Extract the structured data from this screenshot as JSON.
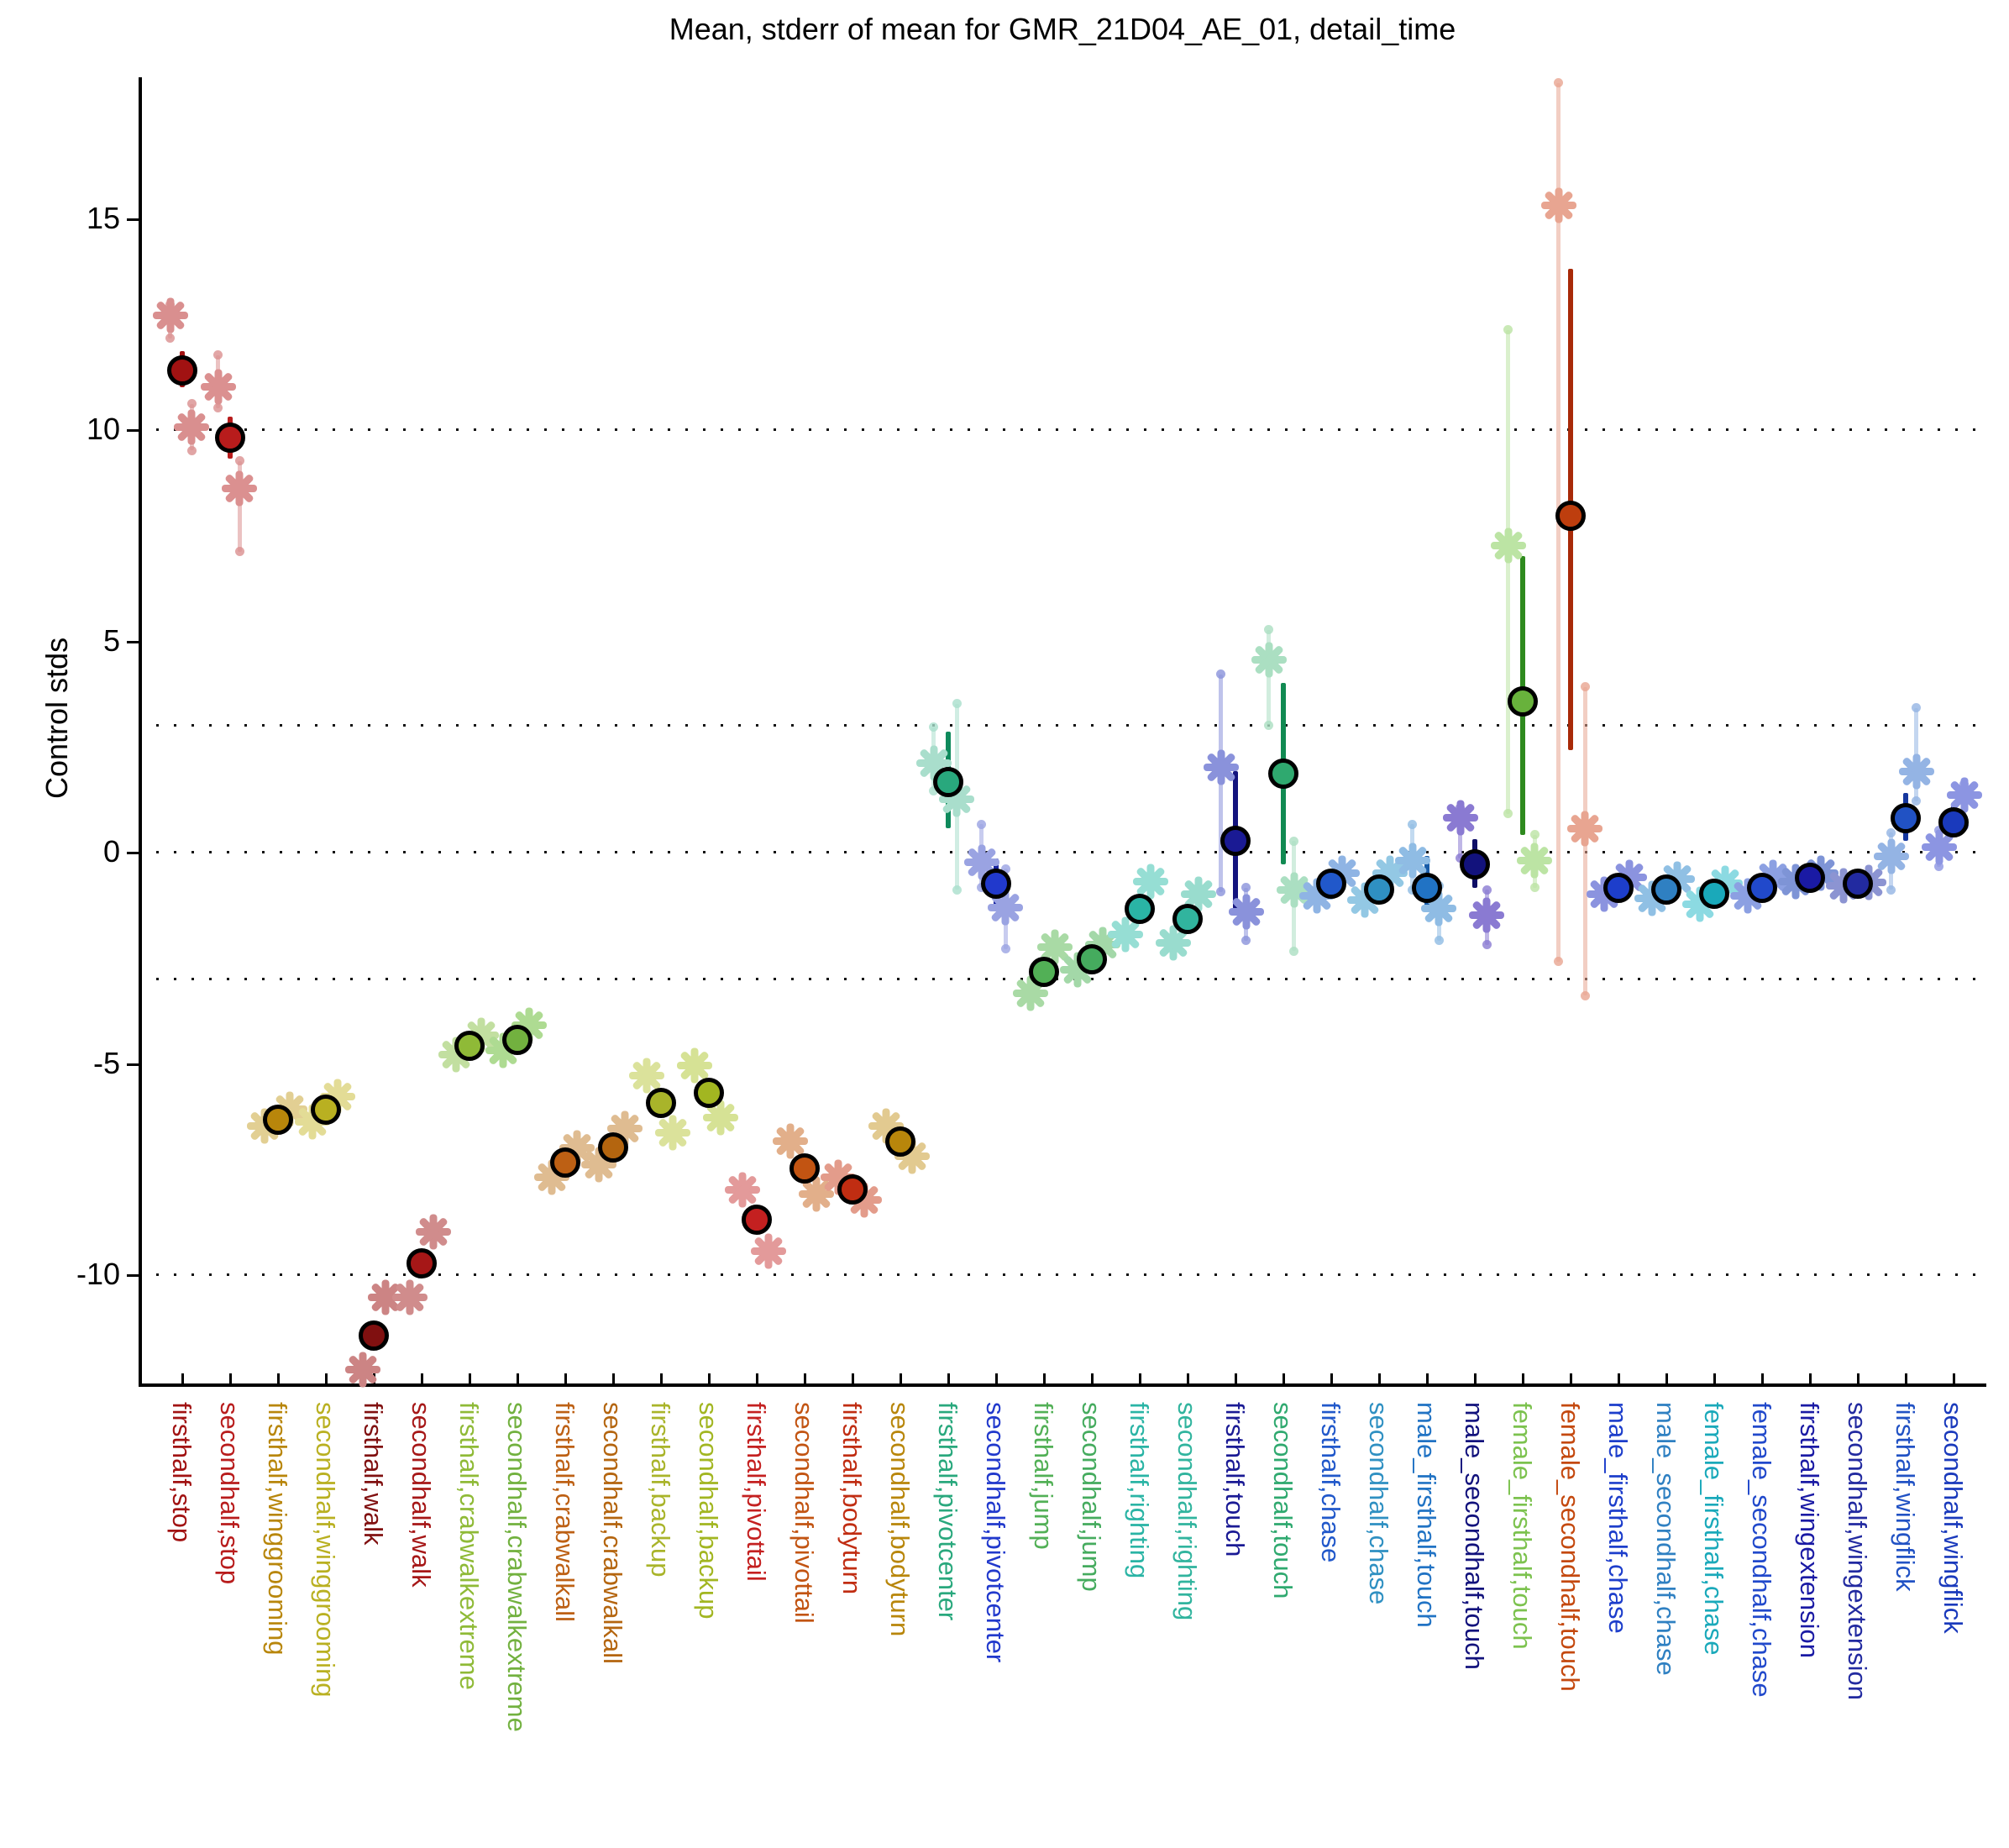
{
  "chart_data": {
    "type": "scatter",
    "title": "Mean, stderr of mean for GMR_21D04_AE_01, detail_time",
    "ylabel": "Control stds",
    "xlabel": "",
    "legend": "none",
    "grid": "dotted horizontal lines",
    "ylim": [
      -12.8,
      18.35
    ],
    "yticks": [
      15,
      10,
      5,
      0,
      -5,
      -10
    ],
    "gridlines": [
      10,
      3,
      0,
      -3,
      -10
    ],
    "marker_note": "filled circle = mean with stderr bar; asterisks = control set means with pale stderr bars",
    "categories": [
      {
        "label": "firsthalf,stop",
        "color": "#A11212",
        "starColor": "#D98F8F",
        "mean": 11.4,
        "err": [
          11.0,
          11.85
        ],
        "stars": [
          {
            "v": 12.7,
            "dx": -0.25,
            "lo": 12.15,
            "hi": 12.95
          },
          {
            "v": 10.05,
            "dx": 0.2,
            "lo": 9.5,
            "hi": 10.6
          }
        ]
      },
      {
        "label": "secondhalf,stop",
        "color": "#B81C1C",
        "starColor": "#DB9090",
        "mean": 9.8,
        "err": [
          9.3,
          10.3
        ],
        "stars": [
          {
            "v": 11.0,
            "dx": -0.25,
            "lo": 10.5,
            "hi": 11.75
          },
          {
            "v": 8.6,
            "dx": 0.2,
            "lo": 7.1,
            "hi": 9.25
          }
        ]
      },
      {
        "label": "firsthalf,winggrooming",
        "color": "#B8860B",
        "starColor": "#E2CF93",
        "mean": -6.35,
        "stars": [
          {
            "v": -6.5,
            "dx": -0.28
          },
          {
            "v": -6.1,
            "dx": 0.25
          }
        ]
      },
      {
        "label": "secondhalf,winggrooming",
        "color": "#B9B021",
        "starColor": "#E3DC96",
        "mean": -6.1,
        "stars": [
          {
            "v": -6.4,
            "dx": -0.28
          },
          {
            "v": -5.8,
            "dx": 0.25
          }
        ]
      },
      {
        "label": "firsthalf,walk",
        "color": "#801010",
        "starColor": "#CC8484",
        "mean": -11.45,
        "err": [
          -11.75,
          -11.15
        ],
        "stars": [
          {
            "v": -12.25,
            "dx": -0.22
          },
          {
            "v": -10.55,
            "dx": 0.25
          }
        ]
      },
      {
        "label": "secondhalf,walk",
        "color": "#A61717",
        "starColor": "#D08C8C",
        "mean": -9.75,
        "err": [
          -10.05,
          -9.45
        ],
        "stars": [
          {
            "v": -10.55,
            "dx": -0.25
          },
          {
            "v": -9.0,
            "dx": 0.25
          }
        ]
      },
      {
        "label": "firsthalf,crabwalkextreme",
        "color": "#8FBA37",
        "starColor": "#C2DFA0",
        "mean": -4.6,
        "stars": [
          {
            "v": -4.8,
            "dx": -0.28
          },
          {
            "v": -4.35,
            "dx": 0.25
          }
        ]
      },
      {
        "label": "secondhalf,crabwalkextreme",
        "color": "#72B13F",
        "starColor": "#AEDB92",
        "mean": -4.45,
        "stars": [
          {
            "v": -4.7,
            "dx": -0.3
          },
          {
            "v": -4.1,
            "dx": 0.25
          }
        ]
      },
      {
        "label": "firsthalf,crabwalkall",
        "color": "#BD6014",
        "starColor": "#DFBC91",
        "mean": -7.35,
        "stars": [
          {
            "v": -7.7,
            "dx": -0.28
          },
          {
            "v": -7.0,
            "dx": 0.25
          }
        ]
      },
      {
        "label": "secondhalf,crabwalkall",
        "color": "#B4650F",
        "starColor": "#DFBC91",
        "mean": -7.0,
        "stars": [
          {
            "v": -7.4,
            "dx": -0.3
          },
          {
            "v": -6.55,
            "dx": 0.25
          }
        ]
      },
      {
        "label": "firsthalf,backup",
        "color": "#A9B42A",
        "starColor": "#DBE29B",
        "mean": -5.95,
        "stars": [
          {
            "v": -5.3,
            "dx": -0.3
          },
          {
            "v": -6.65,
            "dx": 0.25
          }
        ]
      },
      {
        "label": "secondhalf,backup",
        "color": "#A2B621",
        "starColor": "#D6E295",
        "mean": -5.7,
        "stars": [
          {
            "v": -5.05,
            "dx": -0.3
          },
          {
            "v": -6.3,
            "dx": 0.25
          }
        ]
      },
      {
        "label": "firsthalf,pivottail",
        "color": "#C42020",
        "starColor": "#E39A9A",
        "mean": -8.7,
        "stars": [
          {
            "v": -8.0,
            "dx": -0.3
          },
          {
            "v": -9.45,
            "dx": 0.25
          }
        ]
      },
      {
        "label": "secondhalf,pivottail",
        "color": "#C25412",
        "starColor": "#E2AF8A",
        "mean": -7.5,
        "stars": [
          {
            "v": -6.85,
            "dx": -0.3
          },
          {
            "v": -8.1,
            "dx": 0.25
          }
        ]
      },
      {
        "label": "firsthalf,bodyturn",
        "color": "#C02D12",
        "starColor": "#E39C8B",
        "mean": -8.0,
        "stars": [
          {
            "v": -7.7,
            "dx": -0.3
          },
          {
            "v": -8.25,
            "dx": 0.25
          }
        ]
      },
      {
        "label": "secondhalf,bodyturn",
        "color": "#B8860B",
        "starColor": "#E2CA90",
        "mean": -6.85,
        "stars": [
          {
            "v": -6.5,
            "dx": -0.3
          },
          {
            "v": -7.2,
            "dx": 0.25
          }
        ]
      },
      {
        "label": "firsthalf,pivotcenter",
        "color": "#29A87D",
        "barColor": "#0F8A5C",
        "starColor": "#A9DECC",
        "mean": 1.65,
        "err": [
          0.55,
          2.85
        ],
        "stars": [
          {
            "v": 2.1,
            "dx": -0.3,
            "lo": 1.45,
            "hi": 2.95
          },
          {
            "v": 1.25,
            "dx": 0.18,
            "lo": -0.9,
            "hi": 3.5
          }
        ]
      },
      {
        "label": "secondhalf,pivotcenter",
        "color": "#2139CC",
        "barColor": "#16229E",
        "starColor": "#9AA3E2",
        "mean": -0.76,
        "err": [
          -1.37,
          -0.15
        ],
        "stars": [
          {
            "v": -0.25,
            "dx": -0.3,
            "lo": -0.85,
            "hi": 0.65
          },
          {
            "v": -1.33,
            "dx": 0.2,
            "lo": -2.3,
            "hi": -0.4
          }
        ]
      },
      {
        "label": "firsthalf,jump",
        "color": "#52B056",
        "starColor": "#A9DAA5",
        "mean": -2.85,
        "stars": [
          {
            "v": -3.35,
            "dx": -0.28
          },
          {
            "v": -2.25,
            "dx": 0.22
          }
        ]
      },
      {
        "label": "secondhalf,jump",
        "color": "#45AB5E",
        "starColor": "#A3D8A8",
        "mean": -2.55,
        "stars": [
          {
            "v": -2.8,
            "dx": -0.3
          },
          {
            "v": -2.2,
            "dx": 0.22
          }
        ]
      },
      {
        "label": "firsthalf,righting",
        "color": "#2AB4A5",
        "starColor": "#96DED4",
        "mean": -1.35,
        "stars": [
          {
            "v": -1.95,
            "dx": -0.3
          },
          {
            "v": -0.7,
            "dx": 0.22
          }
        ]
      },
      {
        "label": "secondhalf,righting",
        "color": "#31B49E",
        "starColor": "#99DCCE",
        "mean": -1.6,
        "stars": [
          {
            "v": -2.15,
            "dx": -0.3
          },
          {
            "v": -1.0,
            "dx": 0.22
          }
        ]
      },
      {
        "label": "firsthalf,touch",
        "color": "#1A1A94",
        "barColor": "#14147E",
        "starColor": "#8A92DB",
        "mean": 0.25,
        "err": [
          -1.35,
          1.9
        ],
        "stars": [
          {
            "v": 2.0,
            "dx": -0.3,
            "lo": -0.95,
            "hi": 4.2
          },
          {
            "v": -1.43,
            "dx": 0.22,
            "lo": -2.1,
            "hi": -0.85
          }
        ]
      },
      {
        "label": "secondhalf,touch",
        "color": "#2FA96F",
        "barColor": "#118A52",
        "starColor": "#ABDFC2",
        "mean": 1.85,
        "err": [
          -0.3,
          4.0
        ],
        "stars": [
          {
            "v": 4.55,
            "dx": -0.3,
            "lo": 3.0,
            "hi": 5.25
          },
          {
            "v": -0.9,
            "dx": 0.22,
            "lo": -2.35,
            "hi": 0.25
          }
        ]
      },
      {
        "label": "firsthalf,chase",
        "color": "#2158CA",
        "starColor": "#8FB4E4",
        "mean": -0.75,
        "stars": [
          {
            "v": -1.05,
            "dx": -0.3
          },
          {
            "v": -0.5,
            "dx": 0.22
          }
        ]
      },
      {
        "label": "secondhalf,chase",
        "color": "#2F90C2",
        "starColor": "#93C8E4",
        "mean": -0.9,
        "stars": [
          {
            "v": -1.15,
            "dx": -0.3
          },
          {
            "v": -0.5,
            "dx": 0.22
          }
        ]
      },
      {
        "label": "male_firsthalf,touch",
        "color": "#2173C4",
        "barColor": "#185BA8",
        "starColor": "#8FBCE4",
        "mean": -0.85,
        "err": [
          -1.3,
          -0.1
        ],
        "stars": [
          {
            "v": -0.2,
            "dx": -0.3,
            "lo": -0.9,
            "hi": 0.65
          },
          {
            "v": -1.35,
            "dx": 0.25,
            "lo": -2.1,
            "hi": -0.8
          }
        ]
      },
      {
        "label": "male_secondhalf,touch",
        "color": "#12127C",
        "barColor": "#0E0E66",
        "starColor": "#8A7AD2",
        "mean": -0.3,
        "err": [
          -0.85,
          0.3
        ],
        "stars": [
          {
            "v": 0.8,
            "dx": -0.3,
            "lo": -0.15,
            "hi": 1.05
          },
          {
            "v": -1.5,
            "dx": 0.25,
            "lo": -2.2,
            "hi": -0.9
          }
        ]
      },
      {
        "label": "female_firsthalf,touch",
        "color": "#68B23C",
        "labelColor": "#7CC24E",
        "barColor": "#2E8A1E",
        "starColor": "#BCE4A4",
        "mean": 3.55,
        "err": [
          0.4,
          7.0
        ],
        "stars": [
          {
            "v": 7.25,
            "dx": -0.3,
            "lo": 0.9,
            "hi": 12.35
          },
          {
            "v": -0.2,
            "dx": 0.25,
            "lo": -0.85,
            "hi": 0.4
          }
        ]
      },
      {
        "label": "female_secondhalf,touch",
        "color": "#BE3E0E",
        "labelColor": "#C4490F",
        "barColor": "#A82A08",
        "starColor": "#E8A591",
        "mean": 7.95,
        "err": [
          2.4,
          13.8
        ],
        "stars": [
          {
            "v": 15.3,
            "dx": -0.25,
            "lo": -2.6,
            "hi": 18.2
          },
          {
            "v": 0.55,
            "dx": 0.3,
            "lo": -3.4,
            "hi": 3.9
          }
        ]
      },
      {
        "label": "male_firsthalf,chase",
        "color": "#1D3ECB",
        "starColor": "#8B93DF",
        "mean": -0.85,
        "stars": [
          {
            "v": -1.0,
            "dx": -0.3
          },
          {
            "v": -0.6,
            "dx": 0.22
          }
        ]
      },
      {
        "label": "male_secondhalf,chase",
        "color": "#2F80C2",
        "starColor": "#90C0E4",
        "mean": -0.9,
        "stars": [
          {
            "v": -1.1,
            "dx": -0.3
          },
          {
            "v": -0.65,
            "dx": 0.22
          }
        ]
      },
      {
        "label": "female_firsthalf,chase",
        "color": "#1AA9BA",
        "starColor": "#8CDAE2",
        "mean": -1.0,
        "stars": [
          {
            "v": -1.25,
            "dx": -0.3
          },
          {
            "v": -0.75,
            "dx": 0.22
          }
        ]
      },
      {
        "label": "female_secondhalf,chase",
        "color": "#2149CB",
        "starColor": "#8CA0E2",
        "mean": -0.85,
        "stars": [
          {
            "v": -1.05,
            "dx": -0.3
          },
          {
            "v": -0.6,
            "dx": 0.22
          }
        ]
      },
      {
        "label": "firsthalf,wingextension",
        "color": "#1A1AA4",
        "starColor": "#7E94D6",
        "mean": -0.62,
        "stars": [
          {
            "v": -0.7,
            "dx": -0.3
          },
          {
            "v": -0.5,
            "dx": 0.22
          }
        ]
      },
      {
        "label": "secondhalf,wingextension",
        "color": "#222AA0",
        "starColor": "#8C94D2",
        "mean": -0.75,
        "stars": [
          {
            "v": -0.8,
            "dx": -0.3
          },
          {
            "v": -0.72,
            "dx": 0.22
          }
        ]
      },
      {
        "label": "firsthalf,wingflick",
        "color": "#2152C4",
        "barColor": "#16379E",
        "starColor": "#94B4E4",
        "mean": 0.8,
        "err": [
          0.25,
          1.4
        ],
        "stars": [
          {
            "v": -0.1,
            "dx": -0.3,
            "lo": -0.9,
            "hi": 0.45
          },
          {
            "v": 1.9,
            "dx": 0.22,
            "lo": 1.2,
            "hi": 3.4
          }
        ]
      },
      {
        "label": "secondhalf,wingflick",
        "color": "#1A3ABC",
        "barColor": "#122A92",
        "starColor": "#8C95E2",
        "mean": 0.7,
        "err": [
          0.35,
          1.1
        ],
        "stars": [
          {
            "v": 0.1,
            "dx": -0.3,
            "lo": -0.35,
            "hi": 0.5
          },
          {
            "v": 1.35,
            "dx": 0.22,
            "lo": 0.6,
            "hi": 1.6
          }
        ]
      }
    ]
  }
}
